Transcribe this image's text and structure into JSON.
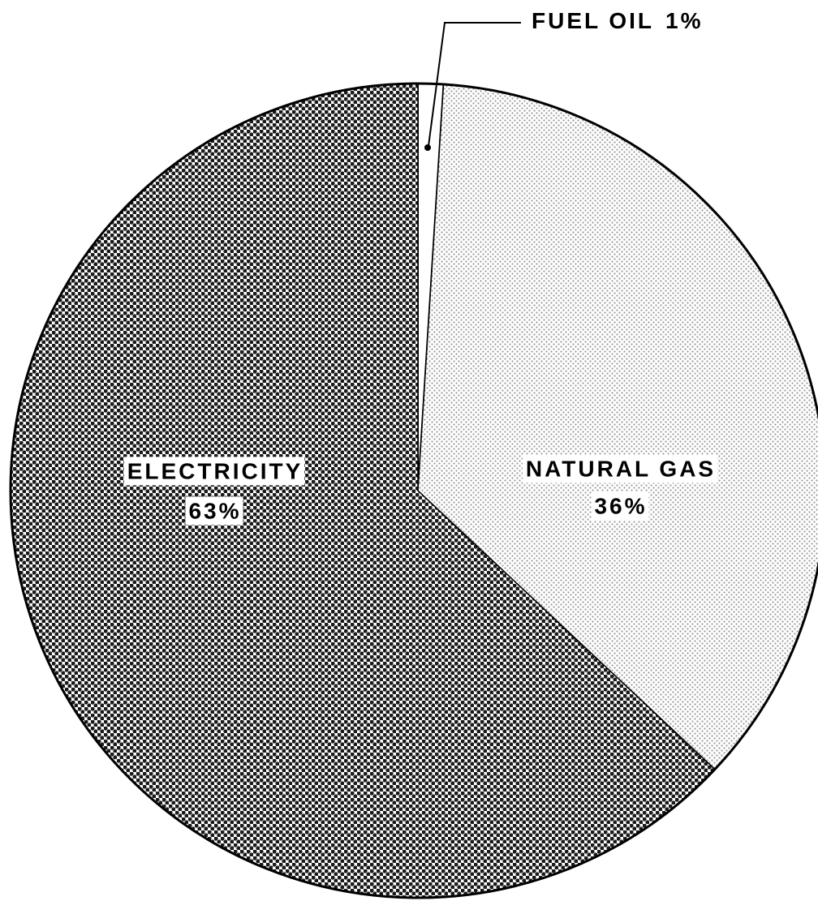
{
  "chart_data": {
    "type": "pie",
    "categories": [
      "FUEL OIL",
      "NATURAL GAS",
      "ELECTRICITY"
    ],
    "values": [
      1,
      36,
      63
    ],
    "value_labels": [
      "1%",
      "36%",
      "63%"
    ],
    "colors": [
      "#ffffff",
      "#9a9a9a",
      "#1a1a1a"
    ]
  }
}
